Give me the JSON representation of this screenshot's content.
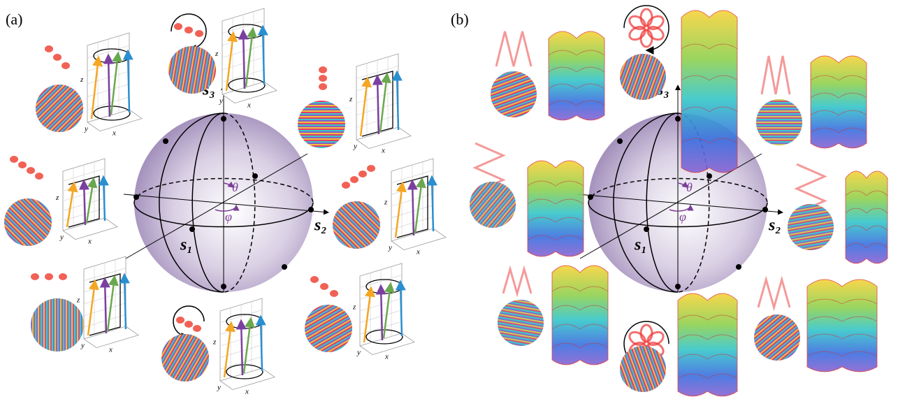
{
  "panels": [
    {
      "label": "(a)",
      "sphere": {
        "s1": "s₁",
        "s2": "s₂",
        "s3": "s₃",
        "theta": "θ",
        "phi": "φ"
      },
      "plot_axes": {
        "x": "x",
        "y": "y",
        "z": "z"
      }
    },
    {
      "label": "(b)",
      "sphere": {
        "s1": "s₁",
        "s2": "s₂",
        "s3": "s₃",
        "theta": "θ",
        "phi": "φ"
      }
    }
  ]
}
